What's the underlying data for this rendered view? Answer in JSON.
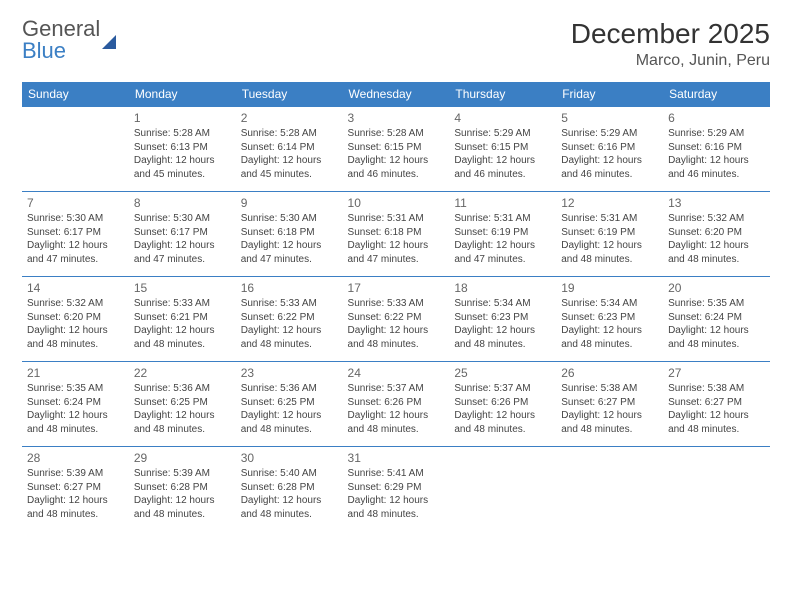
{
  "brand": {
    "word1": "General",
    "word2": "Blue"
  },
  "title": "December 2025",
  "location": "Marco, Junin, Peru",
  "colors": {
    "header_bg": "#3b7fc4",
    "header_text": "#ffffff",
    "rule": "#3b7fc4",
    "body_text": "#444444",
    "daynum": "#666666",
    "page_bg": "#ffffff"
  },
  "weekdays": [
    "Sunday",
    "Monday",
    "Tuesday",
    "Wednesday",
    "Thursday",
    "Friday",
    "Saturday"
  ],
  "weeks": [
    [
      null,
      {
        "n": "1",
        "sr": "Sunrise: 5:28 AM",
        "ss": "Sunset: 6:13 PM",
        "d1": "Daylight: 12 hours",
        "d2": "and 45 minutes."
      },
      {
        "n": "2",
        "sr": "Sunrise: 5:28 AM",
        "ss": "Sunset: 6:14 PM",
        "d1": "Daylight: 12 hours",
        "d2": "and 45 minutes."
      },
      {
        "n": "3",
        "sr": "Sunrise: 5:28 AM",
        "ss": "Sunset: 6:15 PM",
        "d1": "Daylight: 12 hours",
        "d2": "and 46 minutes."
      },
      {
        "n": "4",
        "sr": "Sunrise: 5:29 AM",
        "ss": "Sunset: 6:15 PM",
        "d1": "Daylight: 12 hours",
        "d2": "and 46 minutes."
      },
      {
        "n": "5",
        "sr": "Sunrise: 5:29 AM",
        "ss": "Sunset: 6:16 PM",
        "d1": "Daylight: 12 hours",
        "d2": "and 46 minutes."
      },
      {
        "n": "6",
        "sr": "Sunrise: 5:29 AM",
        "ss": "Sunset: 6:16 PM",
        "d1": "Daylight: 12 hours",
        "d2": "and 46 minutes."
      }
    ],
    [
      {
        "n": "7",
        "sr": "Sunrise: 5:30 AM",
        "ss": "Sunset: 6:17 PM",
        "d1": "Daylight: 12 hours",
        "d2": "and 47 minutes."
      },
      {
        "n": "8",
        "sr": "Sunrise: 5:30 AM",
        "ss": "Sunset: 6:17 PM",
        "d1": "Daylight: 12 hours",
        "d2": "and 47 minutes."
      },
      {
        "n": "9",
        "sr": "Sunrise: 5:30 AM",
        "ss": "Sunset: 6:18 PM",
        "d1": "Daylight: 12 hours",
        "d2": "and 47 minutes."
      },
      {
        "n": "10",
        "sr": "Sunrise: 5:31 AM",
        "ss": "Sunset: 6:18 PM",
        "d1": "Daylight: 12 hours",
        "d2": "and 47 minutes."
      },
      {
        "n": "11",
        "sr": "Sunrise: 5:31 AM",
        "ss": "Sunset: 6:19 PM",
        "d1": "Daylight: 12 hours",
        "d2": "and 47 minutes."
      },
      {
        "n": "12",
        "sr": "Sunrise: 5:31 AM",
        "ss": "Sunset: 6:19 PM",
        "d1": "Daylight: 12 hours",
        "d2": "and 48 minutes."
      },
      {
        "n": "13",
        "sr": "Sunrise: 5:32 AM",
        "ss": "Sunset: 6:20 PM",
        "d1": "Daylight: 12 hours",
        "d2": "and 48 minutes."
      }
    ],
    [
      {
        "n": "14",
        "sr": "Sunrise: 5:32 AM",
        "ss": "Sunset: 6:20 PM",
        "d1": "Daylight: 12 hours",
        "d2": "and 48 minutes."
      },
      {
        "n": "15",
        "sr": "Sunrise: 5:33 AM",
        "ss": "Sunset: 6:21 PM",
        "d1": "Daylight: 12 hours",
        "d2": "and 48 minutes."
      },
      {
        "n": "16",
        "sr": "Sunrise: 5:33 AM",
        "ss": "Sunset: 6:22 PM",
        "d1": "Daylight: 12 hours",
        "d2": "and 48 minutes."
      },
      {
        "n": "17",
        "sr": "Sunrise: 5:33 AM",
        "ss": "Sunset: 6:22 PM",
        "d1": "Daylight: 12 hours",
        "d2": "and 48 minutes."
      },
      {
        "n": "18",
        "sr": "Sunrise: 5:34 AM",
        "ss": "Sunset: 6:23 PM",
        "d1": "Daylight: 12 hours",
        "d2": "and 48 minutes."
      },
      {
        "n": "19",
        "sr": "Sunrise: 5:34 AM",
        "ss": "Sunset: 6:23 PM",
        "d1": "Daylight: 12 hours",
        "d2": "and 48 minutes."
      },
      {
        "n": "20",
        "sr": "Sunrise: 5:35 AM",
        "ss": "Sunset: 6:24 PM",
        "d1": "Daylight: 12 hours",
        "d2": "and 48 minutes."
      }
    ],
    [
      {
        "n": "21",
        "sr": "Sunrise: 5:35 AM",
        "ss": "Sunset: 6:24 PM",
        "d1": "Daylight: 12 hours",
        "d2": "and 48 minutes."
      },
      {
        "n": "22",
        "sr": "Sunrise: 5:36 AM",
        "ss": "Sunset: 6:25 PM",
        "d1": "Daylight: 12 hours",
        "d2": "and 48 minutes."
      },
      {
        "n": "23",
        "sr": "Sunrise: 5:36 AM",
        "ss": "Sunset: 6:25 PM",
        "d1": "Daylight: 12 hours",
        "d2": "and 48 minutes."
      },
      {
        "n": "24",
        "sr": "Sunrise: 5:37 AM",
        "ss": "Sunset: 6:26 PM",
        "d1": "Daylight: 12 hours",
        "d2": "and 48 minutes."
      },
      {
        "n": "25",
        "sr": "Sunrise: 5:37 AM",
        "ss": "Sunset: 6:26 PM",
        "d1": "Daylight: 12 hours",
        "d2": "and 48 minutes."
      },
      {
        "n": "26",
        "sr": "Sunrise: 5:38 AM",
        "ss": "Sunset: 6:27 PM",
        "d1": "Daylight: 12 hours",
        "d2": "and 48 minutes."
      },
      {
        "n": "27",
        "sr": "Sunrise: 5:38 AM",
        "ss": "Sunset: 6:27 PM",
        "d1": "Daylight: 12 hours",
        "d2": "and 48 minutes."
      }
    ],
    [
      {
        "n": "28",
        "sr": "Sunrise: 5:39 AM",
        "ss": "Sunset: 6:27 PM",
        "d1": "Daylight: 12 hours",
        "d2": "and 48 minutes."
      },
      {
        "n": "29",
        "sr": "Sunrise: 5:39 AM",
        "ss": "Sunset: 6:28 PM",
        "d1": "Daylight: 12 hours",
        "d2": "and 48 minutes."
      },
      {
        "n": "30",
        "sr": "Sunrise: 5:40 AM",
        "ss": "Sunset: 6:28 PM",
        "d1": "Daylight: 12 hours",
        "d2": "and 48 minutes."
      },
      {
        "n": "31",
        "sr": "Sunrise: 5:41 AM",
        "ss": "Sunset: 6:29 PM",
        "d1": "Daylight: 12 hours",
        "d2": "and 48 minutes."
      },
      null,
      null,
      null
    ]
  ]
}
